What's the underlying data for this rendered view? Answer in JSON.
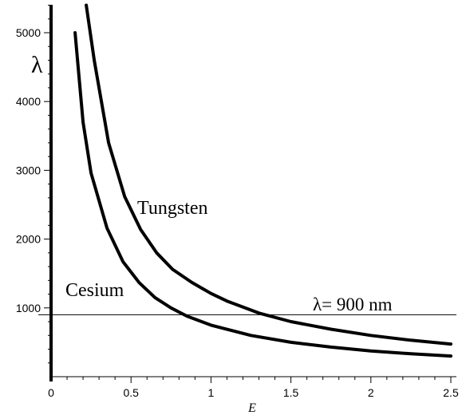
{
  "chart_data": {
    "type": "line",
    "title": "",
    "xlabel": "E",
    "ylabel": "λ",
    "xlim": [
      0,
      2.5
    ],
    "ylim": [
      0,
      5400
    ],
    "x_ticks": [
      0,
      0.5,
      1,
      1.5,
      2,
      2.5
    ],
    "x_tick_labels": [
      "0",
      "0.5",
      "1",
      "1.5",
      "2",
      "2.5"
    ],
    "y_ticks": [
      1000,
      2000,
      3000,
      4000,
      5000
    ],
    "y_tick_labels": [
      "1000",
      "2000",
      "3000",
      "4000",
      "5000"
    ],
    "grid": false,
    "series": [
      {
        "name": "Cesium",
        "x": [
          0.15,
          0.2,
          0.25,
          0.35,
          0.45,
          0.55,
          0.65,
          0.75,
          0.85,
          1.0,
          1.25,
          1.5,
          1.75,
          2.0,
          2.25,
          2.5
        ],
        "y": [
          5000,
          3700,
          2960,
          2160,
          1670,
          1370,
          1150,
          1000,
          880,
          750,
          600,
          500,
          430,
          375,
          333,
          300
        ]
      },
      {
        "name": "Tungsten",
        "x": [
          0.22,
          0.27,
          0.36,
          0.46,
          0.56,
          0.66,
          0.76,
          0.88,
          1.0,
          1.1,
          1.3,
          1.5,
          1.75,
          2.0,
          2.25,
          2.5
        ],
        "y": [
          5400,
          4600,
          3400,
          2620,
          2140,
          1800,
          1560,
          1370,
          1210,
          1100,
          925,
          800,
          690,
          600,
          530,
          475
        ]
      }
    ],
    "reference_line": {
      "y": 900,
      "label": "λ= 900 nm"
    }
  }
}
